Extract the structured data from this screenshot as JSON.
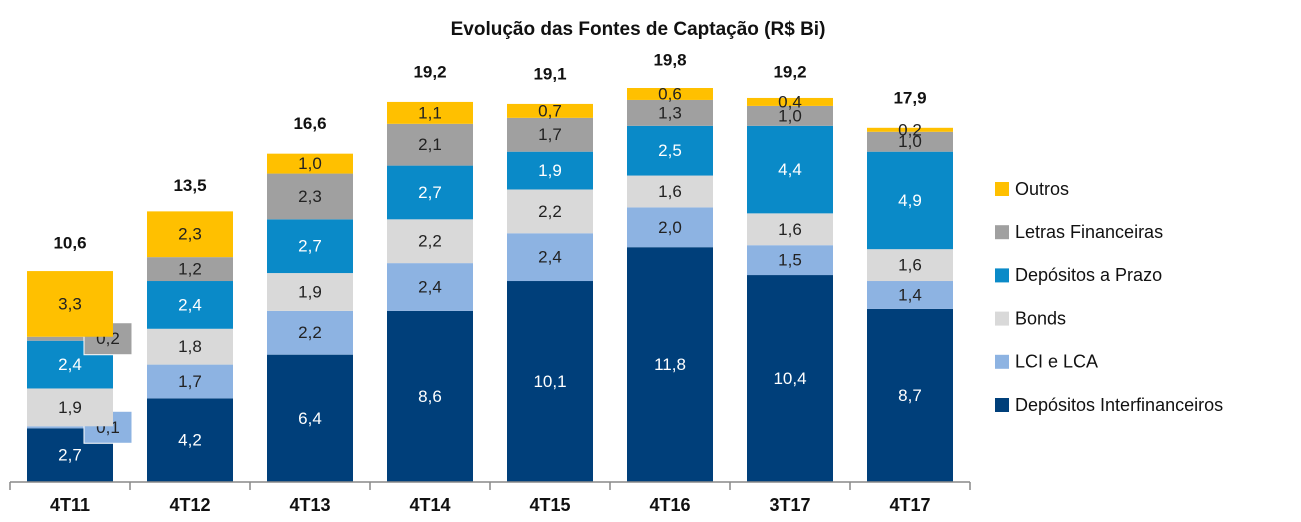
{
  "chart_data": {
    "type": "stacked_bar",
    "title": "Evolução das Fontes de Captação (R$ Bi)",
    "categories": [
      "4T11",
      "4T12",
      "4T13",
      "4T14",
      "4T15",
      "4T16",
      "3T17",
      "4T17"
    ],
    "series": [
      {
        "name": "Depósitos Interfinanceiros",
        "color": "#003f7a",
        "values": [
          2.7,
          4.2,
          6.4,
          8.6,
          10.1,
          11.8,
          10.4,
          8.7
        ],
        "value_labels": [
          "2,7",
          "4,2",
          "6,4",
          "8,6",
          "10,1",
          "11,8",
          "10,4",
          "8,7"
        ]
      },
      {
        "name": "LCI e LCA",
        "color": "#8db3e2",
        "values": [
          0.1,
          1.7,
          2.2,
          2.4,
          2.4,
          2.0,
          1.5,
          1.4
        ],
        "value_labels": [
          "0,1",
          "1,7",
          "2,2",
          "2,4",
          "2,4",
          "2,0",
          "1,5",
          "1,4"
        ]
      },
      {
        "name": "Bonds",
        "color": "#d9d9d9",
        "values": [
          1.9,
          1.8,
          1.9,
          2.2,
          2.2,
          1.6,
          1.6,
          1.6
        ],
        "value_labels": [
          "1,9",
          "1,8",
          "1,9",
          "2,2",
          "2,2",
          "1,6",
          "1,6",
          "1,6"
        ]
      },
      {
        "name": "Depósitos a Prazo",
        "color": "#0a8ac8",
        "values": [
          2.4,
          2.4,
          2.7,
          2.7,
          1.9,
          2.5,
          4.4,
          4.9
        ],
        "value_labels": [
          "2,4",
          "2,4",
          "2,7",
          "2,7",
          "1,9",
          "2,5",
          "4,4",
          "4,9"
        ]
      },
      {
        "name": "Letras Financeiras",
        "color": "#a0a0a0",
        "values": [
          0.2,
          1.2,
          2.3,
          2.1,
          1.7,
          1.3,
          1.0,
          1.0
        ],
        "value_labels": [
          "0,2",
          "1,2",
          "2,3",
          "2,1",
          "1,7",
          "1,3",
          "1,0",
          "1,0"
        ]
      },
      {
        "name": "Outros",
        "color": "#ffc000",
        "values": [
          3.3,
          2.3,
          1.0,
          1.1,
          0.7,
          0.6,
          0.4,
          0.2
        ],
        "value_labels": [
          "3,3",
          "2,3",
          "1,0",
          "1,1",
          "0,7",
          "0,6",
          "0,4",
          "0,2"
        ]
      }
    ],
    "totals": {
      "values": [
        10.6,
        13.5,
        16.6,
        19.2,
        19.1,
        19.8,
        19.2,
        17.9
      ],
      "value_labels": [
        "10,6",
        "13,5",
        "16,6",
        "19,2",
        "19,1",
        "19,8",
        "19,2",
        "17,9"
      ]
    }
  }
}
